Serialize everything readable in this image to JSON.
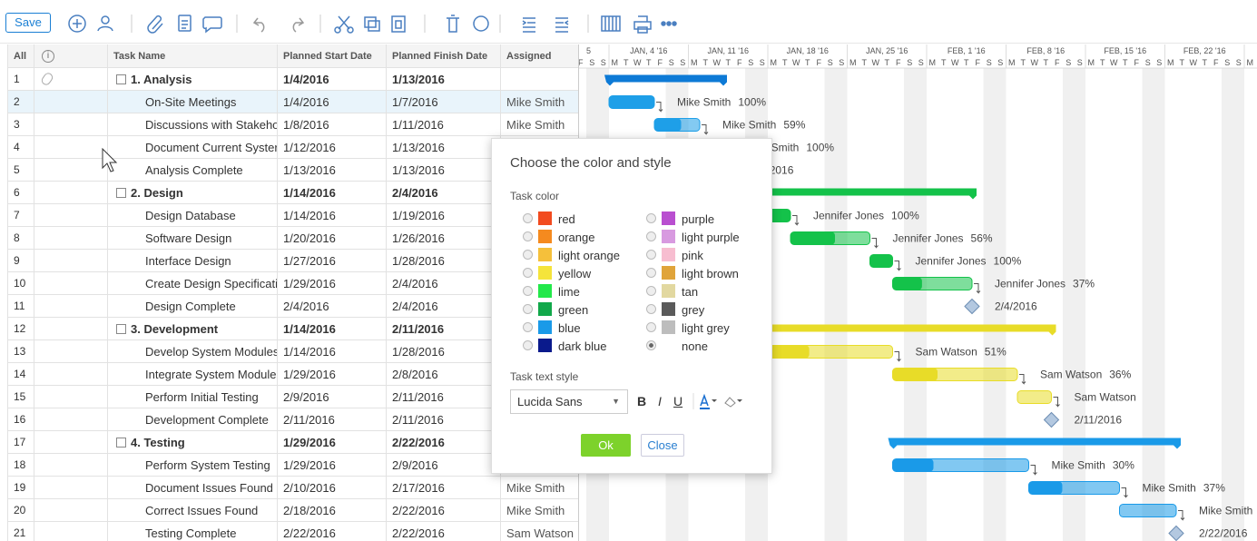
{
  "toolbar": {
    "save": "Save"
  },
  "grid": {
    "headers": [
      "All",
      "Task Name",
      "Planned Start Date",
      "Planned Finish Date",
      "Assigned"
    ],
    "rows": [
      {
        "n": "1",
        "name": "1. Analysis",
        "start": "1/4/2016",
        "finish": "1/13/2016",
        "assigned": null,
        "summary": true
      },
      {
        "n": "2",
        "name": "On-Site Meetings",
        "start": "1/4/2016",
        "finish": "1/7/2016",
        "assigned": "Mike Smith",
        "resource": "Mike Smith",
        "progress": "100%"
      },
      {
        "n": "3",
        "name": "Discussions with Stakeho",
        "start": "1/8/2016",
        "finish": "1/11/2016",
        "assigned": "Mike Smith",
        "resource": "Mike Smith",
        "progress": "59%"
      },
      {
        "n": "4",
        "name": "Document Current Syster",
        "start": "1/12/2016",
        "finish": "1/13/2016",
        "assigned": null,
        "resource": "Mike Smith",
        "progress": "100%"
      },
      {
        "n": "5",
        "name": "Analysis Complete",
        "start": "1/13/2016",
        "finish": "1/13/2016",
        "assigned": null,
        "milestone": true
      },
      {
        "n": "6",
        "name": "2. Design",
        "start": "1/14/2016",
        "finish": "2/4/2016",
        "assigned": null,
        "summary": true,
        "color": "#14c24a"
      },
      {
        "n": "7",
        "name": "Design Database",
        "start": "1/14/2016",
        "finish": "1/19/2016",
        "assigned": null,
        "resource": "Jennifer Jones",
        "progress": "100%",
        "color": "#14c24a"
      },
      {
        "n": "8",
        "name": "Software Design",
        "start": "1/20/2016",
        "finish": "1/26/2016",
        "assigned": null,
        "resource": "Jennifer Jones",
        "progress": "56%",
        "color": "#14c24a"
      },
      {
        "n": "9",
        "name": "Interface Design",
        "start": "1/27/2016",
        "finish": "1/28/2016",
        "assigned": null,
        "resource": "Jennifer Jones",
        "progress": "100%",
        "color": "#14c24a"
      },
      {
        "n": "10",
        "name": "Create Design Specificati",
        "start": "1/29/2016",
        "finish": "2/4/2016",
        "assigned": null,
        "resource": "Jennifer Jones",
        "progress": "37%",
        "color": "#14c24a"
      },
      {
        "n": "11",
        "name": "Design Complete",
        "start": "2/4/2016",
        "finish": "2/4/2016",
        "assigned": null,
        "milestone": true,
        "color": "#14c24a"
      },
      {
        "n": "12",
        "name": "3. Development",
        "start": "1/14/2016",
        "finish": "2/11/2016",
        "assigned": null,
        "summary": true,
        "color": "#e8dc28"
      },
      {
        "n": "13",
        "name": "Develop System Modules",
        "start": "1/14/2016",
        "finish": "1/28/2016",
        "assigned": null,
        "resource": "Sam Watson",
        "progress": "51%",
        "color": "#e8dc28"
      },
      {
        "n": "14",
        "name": "Integrate System Module",
        "start": "1/29/2016",
        "finish": "2/8/2016",
        "assigned": null,
        "resource": "Sam Watson",
        "progress": "36%",
        "color": "#e8dc28"
      },
      {
        "n": "15",
        "name": "Perform Initial Testing",
        "start": "2/9/2016",
        "finish": "2/11/2016",
        "assigned": null,
        "resource": "Sam Watson",
        "color": "#e8dc28"
      },
      {
        "n": "16",
        "name": "Development Complete",
        "start": "2/11/2016",
        "finish": "2/11/2016",
        "assigned": null,
        "milestone": true,
        "color": "#e8dc28"
      },
      {
        "n": "17",
        "name": "4. Testing",
        "start": "1/29/2016",
        "finish": "2/22/2016",
        "assigned": null,
        "summary": true,
        "color": "#1a9ae8"
      },
      {
        "n": "18",
        "name": "Perform System Testing",
        "start": "1/29/2016",
        "finish": "2/9/2016",
        "assigned": null,
        "resource": "Mike Smith",
        "progress": "30%",
        "color": "#1a9ae8"
      },
      {
        "n": "19",
        "name": "Document Issues Found",
        "start": "2/10/2016",
        "finish": "2/17/2016",
        "assigned": "Mike Smith",
        "resource": "Mike Smith",
        "progress": "37%",
        "color": "#1a9ae8"
      },
      {
        "n": "20",
        "name": "Correct Issues Found",
        "start": "2/18/2016",
        "finish": "2/22/2016",
        "assigned": "Mike Smith",
        "resource": "Mike Smith",
        "color": "#1a9ae8"
      },
      {
        "n": "21",
        "name": "Testing Complete",
        "start": "2/22/2016",
        "finish": "2/22/2016",
        "assigned": "Sam Watson",
        "milestone": true,
        "color": "#1a9ae8"
      }
    ]
  },
  "gantt": {
    "weeks": [
      "JAN, 4 '16",
      "JAN, 11 '16",
      "JAN, 18 '16",
      "JAN, 25 '16",
      "FEB, 1 '16",
      "FEB, 8 '16",
      "FEB, 15 '16",
      "FEB, 22 '16"
    ],
    "days": [
      "M",
      "T",
      "W",
      "T",
      "F",
      "S",
      "S"
    ]
  },
  "dialog": {
    "title": "Choose the color and style",
    "color_label": "Task color",
    "colors": [
      {
        "name": "red",
        "color": "#f24b1f"
      },
      {
        "name": "orange",
        "color": "#f58a1f"
      },
      {
        "name": "light orange",
        "color": "#f5c03b"
      },
      {
        "name": "yellow",
        "color": "#f5e43b"
      },
      {
        "name": "lime",
        "color": "#22e84a"
      },
      {
        "name": "green",
        "color": "#11a84a"
      },
      {
        "name": "blue",
        "color": "#1a9ae8"
      },
      {
        "name": "dark blue",
        "color": "#0a1a8c"
      },
      {
        "name": "purple",
        "color": "#b94fd0"
      },
      {
        "name": "light purple",
        "color": "#d89ae0"
      },
      {
        "name": "pink",
        "color": "#f7bdd0"
      },
      {
        "name": "light brown",
        "color": "#e0a43a"
      },
      {
        "name": "tan",
        "color": "#e2d8a0"
      },
      {
        "name": "grey",
        "color": "#5a5a5a"
      },
      {
        "name": "light grey",
        "color": "#bdbdbd"
      },
      {
        "name": "none",
        "color": null,
        "selected": true
      }
    ],
    "style_label": "Task text style",
    "font": "Lucida Sans",
    "bold": "B",
    "italic": "I",
    "underline": "U",
    "ok": "Ok",
    "close": "Close"
  }
}
